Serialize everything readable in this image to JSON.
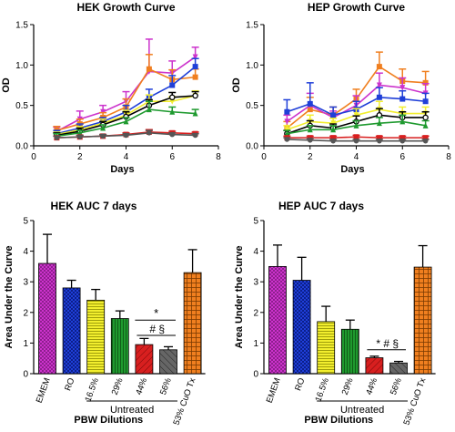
{
  "figure": {
    "panels": [
      "HEK Growth Curve",
      "HEP Growth Curve",
      "HEK AUC 7 days",
      "HEP AUC 7 days"
    ]
  },
  "colors": {
    "EMEM": "#cc33cc",
    "RO": "#1f3fd8",
    "16.5%": "#f2ee2e",
    "29%": "#1f9a2f",
    "44%": "#d81f1f",
    "56%": "#555555",
    "53% CuO Tx": "#f07f1f",
    "black_series": "#000000"
  },
  "chart_data": [
    {
      "type": "line",
      "title": "HEK Growth Curve",
      "xlabel": "Days",
      "ylabel": "OD",
      "xlim": [
        0,
        8
      ],
      "ylim": [
        0,
        1.5
      ],
      "xticks": [
        0,
        2,
        4,
        6,
        8
      ],
      "yticks": [
        0.0,
        0.5,
        1.0,
        1.5
      ],
      "x": [
        1,
        2,
        3,
        4,
        5,
        6,
        7
      ],
      "series": [
        {
          "color": "#cc33cc",
          "marker": "triangle-down",
          "values": [
            0.18,
            0.33,
            0.42,
            0.55,
            0.92,
            0.9,
            1.1
          ],
          "errors": [
            0.05,
            0.1,
            0.08,
            0.12,
            0.4,
            0.15,
            0.12
          ]
        },
        {
          "color": "#f07f1f",
          "marker": "square",
          "values": [
            0.19,
            0.27,
            0.35,
            0.48,
            0.95,
            0.82,
            0.85
          ],
          "errors": [
            0.05,
            0.06,
            0.06,
            0.1,
            0.18,
            0.12,
            0.1
          ]
        },
        {
          "color": "#1f3fd8",
          "marker": "square",
          "values": [
            0.15,
            0.22,
            0.3,
            0.42,
            0.6,
            0.75,
            0.98
          ],
          "errors": [
            0.04,
            0.05,
            0.05,
            0.08,
            0.1,
            0.12,
            0.1
          ]
        },
        {
          "color": "#f2ee2e",
          "marker": "triangle-down",
          "values": [
            0.14,
            0.2,
            0.28,
            0.38,
            0.55,
            0.55,
            0.62
          ],
          "errors": [
            0.03,
            0.04,
            0.05,
            0.06,
            0.08,
            0.06,
            0.06
          ]
        },
        {
          "color": "#000000",
          "marker": "circle-open",
          "values": [
            0.13,
            0.18,
            0.26,
            0.36,
            0.5,
            0.6,
            0.62
          ],
          "errors": [
            0.03,
            0.04,
            0.04,
            0.06,
            0.07,
            0.06,
            0.05
          ]
        },
        {
          "color": "#1f9a2f",
          "marker": "triangle-up",
          "values": [
            0.12,
            0.16,
            0.22,
            0.3,
            0.45,
            0.42,
            0.4
          ],
          "errors": [
            0.03,
            0.03,
            0.04,
            0.05,
            0.1,
            0.06,
            0.05
          ]
        },
        {
          "color": "#d81f1f",
          "marker": "square",
          "values": [
            0.1,
            0.11,
            0.12,
            0.14,
            0.17,
            0.16,
            0.15
          ],
          "errors": [
            0.02,
            0.02,
            0.02,
            0.02,
            0.03,
            0.02,
            0.02
          ]
        },
        {
          "color": "#555555",
          "marker": "circle",
          "values": [
            0.1,
            0.11,
            0.12,
            0.13,
            0.16,
            0.14,
            0.13
          ],
          "errors": [
            0.02,
            0.02,
            0.02,
            0.02,
            0.03,
            0.02,
            0.02
          ]
        }
      ]
    },
    {
      "type": "line",
      "title": "HEP Growth Curve",
      "xlabel": "Days",
      "ylabel": "OD",
      "xlim": [
        0,
        8
      ],
      "ylim": [
        0,
        1.5
      ],
      "xticks": [
        0,
        2,
        4,
        6,
        8
      ],
      "yticks": [
        0.0,
        0.5,
        1.0,
        1.5
      ],
      "x": [
        1,
        2,
        3,
        4,
        5,
        6,
        7
      ],
      "series": [
        {
          "color": "#f07f1f",
          "marker": "square",
          "values": [
            0.22,
            0.45,
            0.38,
            0.58,
            0.98,
            0.8,
            0.78
          ],
          "errors": [
            0.08,
            0.15,
            0.1,
            0.12,
            0.18,
            0.15,
            0.14
          ]
        },
        {
          "color": "#cc33cc",
          "marker": "triangle-down",
          "values": [
            0.3,
            0.5,
            0.35,
            0.5,
            0.75,
            0.72,
            0.65
          ],
          "errors": [
            0.08,
            0.15,
            0.08,
            0.12,
            0.15,
            0.12,
            0.12
          ]
        },
        {
          "color": "#1f3fd8",
          "marker": "square",
          "values": [
            0.42,
            0.52,
            0.38,
            0.45,
            0.6,
            0.58,
            0.55
          ],
          "errors": [
            0.15,
            0.26,
            0.1,
            0.1,
            0.12,
            0.1,
            0.1
          ]
        },
        {
          "color": "#f2ee2e",
          "marker": "triangle-down",
          "values": [
            0.2,
            0.3,
            0.28,
            0.38,
            0.45,
            0.4,
            0.4
          ],
          "errors": [
            0.05,
            0.08,
            0.06,
            0.08,
            0.1,
            0.08,
            0.08
          ]
        },
        {
          "color": "#000000",
          "marker": "circle-open",
          "values": [
            0.15,
            0.25,
            0.22,
            0.3,
            0.38,
            0.35,
            0.35
          ],
          "errors": [
            0.04,
            0.06,
            0.05,
            0.07,
            0.08,
            0.07,
            0.07
          ]
        },
        {
          "color": "#1f9a2f",
          "marker": "triangle-up",
          "values": [
            0.15,
            0.2,
            0.2,
            0.25,
            0.28,
            0.3,
            0.25
          ],
          "errors": [
            0.04,
            0.05,
            0.05,
            0.06,
            0.07,
            0.08,
            0.06
          ]
        },
        {
          "color": "#d81f1f",
          "marker": "square",
          "values": [
            0.1,
            0.1,
            0.1,
            0.11,
            0.1,
            0.1,
            0.1
          ],
          "errors": [
            0.02,
            0.02,
            0.02,
            0.02,
            0.02,
            0.02,
            0.02
          ]
        },
        {
          "color": "#555555",
          "marker": "circle",
          "values": [
            0.08,
            0.07,
            0.06,
            0.06,
            0.06,
            0.06,
            0.06
          ],
          "errors": [
            0.02,
            0.02,
            0.02,
            0.02,
            0.02,
            0.02,
            0.02
          ]
        }
      ]
    },
    {
      "type": "bar",
      "title": "HEK AUC 7 days",
      "xlabel": "PBW Dilutions",
      "ylabel": "Area Under the Curve",
      "ylim": [
        0,
        5
      ],
      "yticks": [
        0,
        1,
        2,
        3,
        4,
        5
      ],
      "categories": [
        "EMEM",
        "RO",
        "16.5%",
        "29%",
        "44%",
        "56%",
        "53% CuO Tx"
      ],
      "values": [
        3.6,
        2.8,
        2.4,
        1.8,
        0.95,
        0.78,
        3.3
      ],
      "errors": [
        0.95,
        0.25,
        0.35,
        0.25,
        0.2,
        0.1,
        0.75
      ],
      "bracket_label": "Untreated",
      "annotations": [
        "*",
        "# §"
      ]
    },
    {
      "type": "bar",
      "title": "HEP AUC 7 days",
      "xlabel": "PBW Dilutions",
      "ylabel": "Area Under the Curve",
      "ylim": [
        0,
        5
      ],
      "yticks": [
        0,
        1,
        2,
        3,
        4,
        5
      ],
      "categories": [
        "EMEM",
        "RO",
        "16.5%",
        "29%",
        "44%",
        "56%",
        "53% CuO Tx"
      ],
      "values": [
        3.5,
        3.05,
        1.7,
        1.45,
        0.52,
        0.35,
        3.48
      ],
      "errors": [
        0.7,
        0.75,
        0.5,
        0.3,
        0.05,
        0.05,
        0.7
      ],
      "bracket_label": "Untreated",
      "annotations": [
        "* # §"
      ]
    }
  ]
}
